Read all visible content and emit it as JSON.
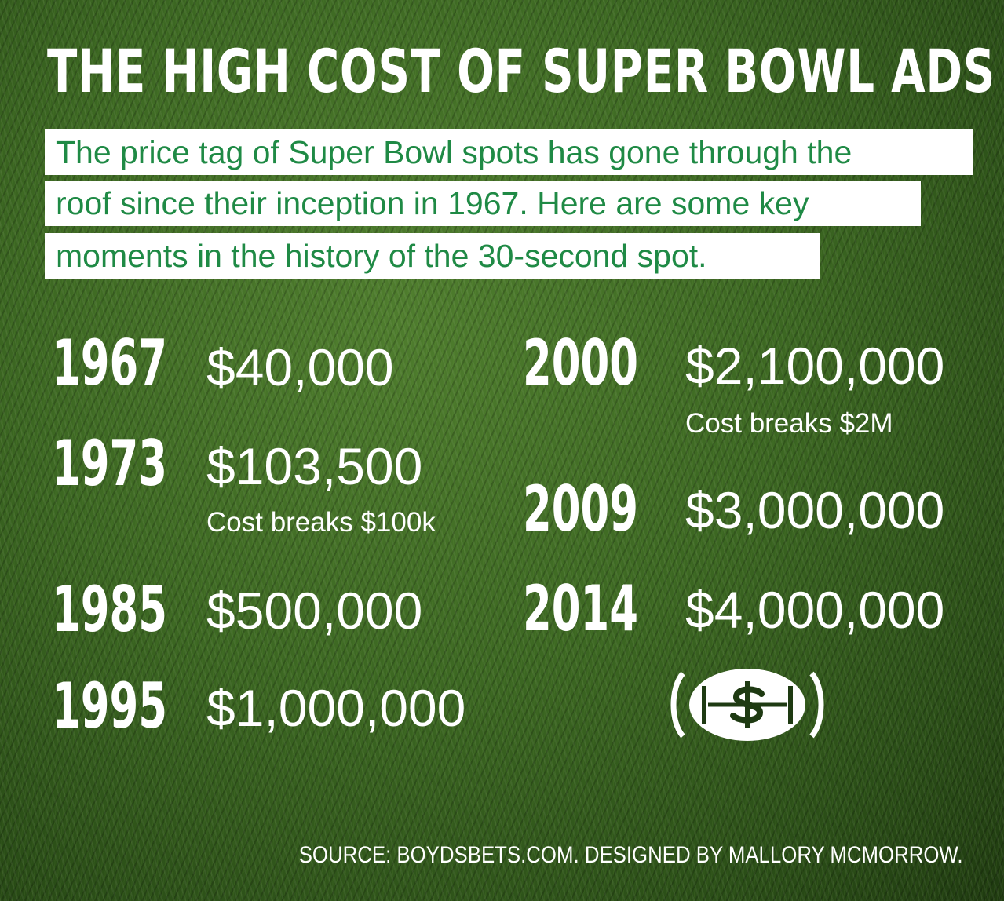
{
  "title": "THE HIGH COST OF SUPER BOWL ADS",
  "subtitle_lines": [
    "The price tag of Super Bowl spots has gone through the",
    "roof since their inception in 1967. Here are some key",
    "moments in the history of the 30-second spot."
  ],
  "entries": [
    {
      "year": "1967",
      "price": "$40,000",
      "note": ""
    },
    {
      "year": "1973",
      "price": "$103,500",
      "note": "Cost breaks $100k"
    },
    {
      "year": "1985",
      "price": "$500,000",
      "note": ""
    },
    {
      "year": "1995",
      "price": "$1,000,000",
      "note": ""
    },
    {
      "year": "2000",
      "price": "$2,100,000",
      "note": "Cost breaks $2M"
    },
    {
      "year": "2009",
      "price": "$3,000,000",
      "note": ""
    },
    {
      "year": "2014",
      "price": "$4,000,000",
      "note": ""
    }
  ],
  "icon": "football-dollar-icon",
  "source": "SOURCE: BOYDSBETS.COM. DESIGNED BY MALLORY MCMORROW.",
  "colors": {
    "accent_green": "#1f8a45",
    "text": "#ffffff",
    "grass": "#3c6722"
  }
}
